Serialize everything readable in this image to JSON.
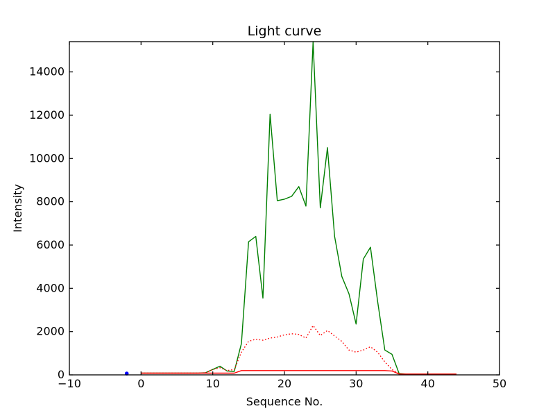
{
  "figure": {
    "background": "#ffffff",
    "axes_color": "#000000"
  },
  "chart_data": {
    "type": "line",
    "title": "Light curve",
    "xlabel": "Sequence No.",
    "ylabel": "Intensity",
    "xlim": [
      -10,
      50
    ],
    "ylim": [
      0,
      15400
    ],
    "grid": false,
    "legend": "none",
    "xticks": {
      "values": [
        -10,
        0,
        10,
        20,
        30,
        40,
        50
      ],
      "labels": [
        "−10",
        "0",
        "10",
        "20",
        "30",
        "40",
        "50"
      ]
    },
    "yticks": {
      "values": [
        0,
        2000,
        4000,
        6000,
        8000,
        10000,
        12000,
        14000
      ],
      "labels": [
        "0",
        "2000",
        "4000",
        "6000",
        "8000",
        "10000",
        "12000",
        "14000"
      ]
    },
    "series": [
      {
        "name": "green-line",
        "color": "#007f00",
        "line_style": "solid",
        "x": [
          0,
          1,
          2,
          3,
          4,
          5,
          6,
          7,
          8,
          9,
          10,
          11,
          12,
          13,
          14,
          15,
          16,
          17,
          18,
          19,
          20,
          21,
          22,
          23,
          24,
          25,
          26,
          27,
          28,
          29,
          30,
          31,
          32,
          33,
          34,
          35,
          36,
          37,
          38,
          39,
          40,
          41,
          42,
          43,
          44
        ],
        "y": [
          80,
          80,
          80,
          80,
          80,
          80,
          80,
          80,
          80,
          100,
          250,
          400,
          180,
          160,
          1450,
          6150,
          6400,
          3550,
          12050,
          8050,
          8120,
          8250,
          8700,
          7800,
          15400,
          7720,
          10500,
          6400,
          4550,
          3750,
          2350,
          5350,
          5900,
          3400,
          1150,
          950,
          60,
          40,
          40,
          40,
          40,
          40,
          40,
          40,
          40
        ]
      },
      {
        "name": "red-dotted-line",
        "color": "#ff0000",
        "line_style": "dotted",
        "x": [
          0,
          1,
          2,
          3,
          4,
          5,
          6,
          7,
          8,
          9,
          10,
          11,
          12,
          13,
          14,
          15,
          16,
          17,
          18,
          19,
          20,
          21,
          22,
          23,
          24,
          25,
          26,
          27,
          28,
          29,
          30,
          31,
          32,
          33,
          34,
          35,
          36
        ],
        "y": [
          80,
          80,
          80,
          80,
          80,
          80,
          80,
          80,
          80,
          100,
          250,
          330,
          200,
          250,
          1050,
          1550,
          1650,
          1600,
          1700,
          1750,
          1850,
          1900,
          1870,
          1700,
          2280,
          1820,
          2050,
          1800,
          1550,
          1150,
          1050,
          1150,
          1300,
          1050,
          600,
          250,
          50
        ]
      },
      {
        "name": "red-line",
        "color": "#ff0000",
        "line_style": "solid",
        "x": [
          0,
          1,
          2,
          3,
          4,
          5,
          6,
          7,
          8,
          9,
          10,
          11,
          12,
          13,
          14,
          15,
          16,
          17,
          18,
          19,
          20,
          21,
          22,
          23,
          24,
          25,
          26,
          27,
          28,
          29,
          30,
          31,
          32,
          33,
          34,
          35,
          36,
          37,
          38,
          39,
          40,
          41,
          42,
          43,
          44
        ],
        "y": [
          80,
          80,
          80,
          80,
          80,
          80,
          80,
          80,
          80,
          80,
          80,
          80,
          80,
          80,
          200,
          200,
          200,
          200,
          200,
          200,
          200,
          200,
          200,
          200,
          200,
          200,
          200,
          200,
          200,
          200,
          200,
          200,
          200,
          200,
          200,
          180,
          40,
          40,
          40,
          40,
          40,
          40,
          40,
          40,
          40
        ]
      },
      {
        "name": "blue-marker",
        "color": "#0000ff",
        "line_style": "marker",
        "x": [
          -2
        ],
        "y": [
          60
        ]
      }
    ]
  }
}
